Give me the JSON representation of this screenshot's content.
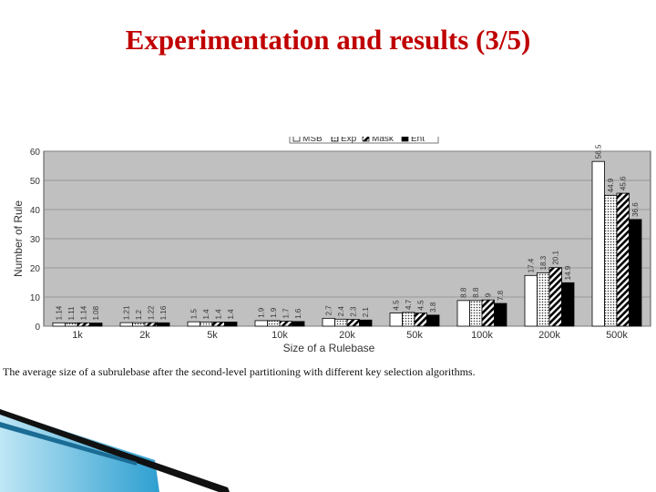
{
  "slide": {
    "title": "Experimentation and results (3/5)",
    "caption": "The average size of a subrulebase after the second-level partitioning with different key selection algorithms.",
    "title_color": "#c00000"
  },
  "chart_data": {
    "type": "bar",
    "title": "",
    "xlabel": "Size of a Rulebase",
    "ylabel": "Number of Rule",
    "ylim": [
      0,
      60
    ],
    "yticks": [
      0,
      10,
      20,
      30,
      40,
      50,
      60
    ],
    "grid": true,
    "legend_position": "top-center",
    "plot_background": "#c0c0c0",
    "categories": [
      "1k",
      "2k",
      "5k",
      "10k",
      "20k",
      "50k",
      "100k",
      "200k",
      "500k"
    ],
    "series": [
      {
        "name": "MSB",
        "pattern": "solid-white",
        "values": [
          1.14,
          1.21,
          1.5,
          1.9,
          2.7,
          4.5,
          8.8,
          17.4,
          56.5
        ],
        "labels": [
          "1.14",
          "1.21",
          "1.5",
          "1.9",
          "2.7",
          "4.5",
          "8.8",
          "17.4",
          "56.5"
        ]
      },
      {
        "name": "Exp",
        "pattern": "dots",
        "values": [
          1.11,
          1.2,
          1.4,
          1.9,
          2.4,
          4.7,
          8.8,
          18.3,
          44.9
        ],
        "labels": [
          "1.11",
          "1.2",
          "1.4",
          "1.9",
          "2.4",
          "4.7",
          "8.8",
          "18.3",
          "44.9"
        ]
      },
      {
        "name": "Mask",
        "pattern": "hatch",
        "values": [
          1.14,
          1.22,
          1.4,
          1.7,
          2.3,
          4.5,
          9,
          20.1,
          45.6
        ],
        "labels": [
          "1.14",
          "1.22",
          "1.4",
          "1.7",
          "2.3",
          "4.5",
          "9",
          "20.1",
          "45.6"
        ]
      },
      {
        "name": "Ent",
        "pattern": "solid-black",
        "values": [
          1.08,
          1.16,
          1.4,
          1.6,
          2.1,
          3.8,
          7.8,
          14.9,
          36.6
        ],
        "labels": [
          "1.08",
          "1.16",
          "1.4",
          "1.6",
          "2.1",
          "3.8",
          "7.8",
          "14.9",
          "36.6"
        ]
      }
    ]
  }
}
